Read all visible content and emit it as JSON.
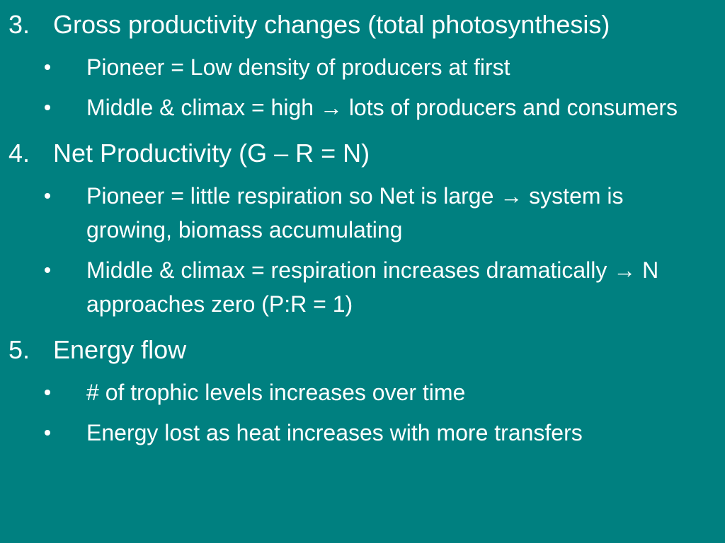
{
  "items": [
    {
      "number": "3.",
      "text": "Gross productivity changes (total photosynthesis)",
      "bullets": [
        "Pioneer = Low density of producers at first",
        "Middle & climax = high → lots of producers and consumers"
      ]
    },
    {
      "number": "4.",
      "text": "Net Productivity (G – R = N)",
      "bullets": [
        "Pioneer = little respiration so Net is large → system is growing, biomass accumulating",
        "Middle & climax = respiration increases dramatically → N approaches zero (P:R = 1)"
      ]
    },
    {
      "number": "5.",
      "text": "Energy flow",
      "bullets": [
        "# of trophic levels increases over time",
        "Energy lost as heat increases with more transfers"
      ]
    }
  ]
}
